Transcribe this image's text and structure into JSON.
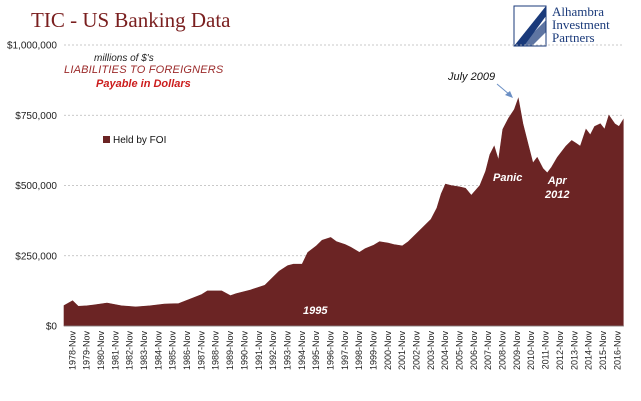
{
  "title": "TIC - US Banking Data",
  "logo": {
    "lines": [
      "Alhambra",
      "Investment",
      "Partners"
    ]
  },
  "colors": {
    "area": "#6b2424",
    "grid": "#b8b8b8",
    "title": "#7a1f1f",
    "logo_blue": "#1a3a7a"
  },
  "annotations": {
    "units": "millions of $'s",
    "liabilities": "LIABILITIES TO FOREIGNERS",
    "payable": "Payable in Dollars",
    "july2009": "July 2009",
    "panic": "Panic",
    "apr": "Apr",
    "apr_year": "2012",
    "y1995": "1995"
  },
  "chart_data": {
    "type": "area",
    "title": "TIC - US Banking Data",
    "legend": {
      "label": "Held by FOI",
      "placement": "left"
    },
    "ylim": [
      0,
      1000000
    ],
    "yticks": [
      0,
      250000,
      500000,
      750000,
      1000000
    ],
    "ytick_labels": [
      "$0",
      "$250,000",
      "$500,000",
      "$750,000",
      "$1,000,000"
    ],
    "grid": true,
    "xtick_labels": [
      "1978-Nov",
      "1979-Nov",
      "1980-Nov",
      "1981-Nov",
      "1982-Nov",
      "1983-Nov",
      "1984-Nov",
      "1985-Nov",
      "1986-Nov",
      "1987-Nov",
      "1988-Nov",
      "1989-Nov",
      "1990-Nov",
      "1991-Nov",
      "1992-Nov",
      "1993-Nov",
      "1994-Nov",
      "1995-Nov",
      "1996-Nov",
      "1997-Nov",
      "1998-Nov",
      "1999-Nov",
      "2000-Nov",
      "2001-Nov",
      "2002-Nov",
      "2003-Nov",
      "2004-Nov",
      "2005-Nov",
      "2006-Nov",
      "2007-Nov",
      "2008-Nov",
      "2009-Nov",
      "2010-Nov",
      "2011-Nov",
      "2012-Nov",
      "2013-Nov",
      "2014-Nov",
      "2015-Nov",
      "2016-Nov"
    ],
    "series": [
      {
        "name": "Held by FOI",
        "x": [
          1977.9,
          1978.5,
          1978.9,
          1979.5,
          1980.0,
          1980.9,
          1981.9,
          1982.9,
          1983.9,
          1984.9,
          1985.9,
          1986.9,
          1987.5,
          1987.9,
          1988.9,
          1989.5,
          1989.9,
          1990.9,
          1991.9,
          1992.5,
          1992.9,
          1993.5,
          1993.9,
          1994.5,
          1994.9,
          1995.5,
          1995.9,
          1996.5,
          1996.9,
          1997.5,
          1997.9,
          1998.5,
          1998.9,
          1999.5,
          1999.9,
          2000.5,
          2000.9,
          2001.5,
          2001.9,
          2002.5,
          2002.9,
          2003.5,
          2003.9,
          2004.2,
          2004.5,
          2004.9,
          2005.5,
          2005.9,
          2006.3,
          2006.9,
          2007.3,
          2007.6,
          2007.9,
          2008.2,
          2008.5,
          2008.9,
          2009.3,
          2009.58,
          2009.9,
          2010.3,
          2010.6,
          2010.9,
          2011.3,
          2011.6,
          2011.9,
          2012.3,
          2012.6,
          2012.9,
          2013.3,
          2013.6,
          2013.9,
          2014.3,
          2014.6,
          2014.9,
          2015.3,
          2015.6,
          2015.9,
          2016.3,
          2016.6,
          2016.9
        ],
        "values": [
          73000,
          90000,
          70000,
          72000,
          75000,
          82000,
          72000,
          68000,
          72000,
          78000,
          80000,
          100000,
          112000,
          125000,
          125000,
          108000,
          115000,
          128000,
          145000,
          175000,
          195000,
          215000,
          220000,
          220000,
          262000,
          285000,
          305000,
          315000,
          300000,
          290000,
          280000,
          262000,
          275000,
          288000,
          300000,
          295000,
          290000,
          285000,
          300000,
          330000,
          350000,
          380000,
          420000,
          470000,
          505000,
          500000,
          495000,
          490000,
          465000,
          500000,
          550000,
          610000,
          640000,
          590000,
          700000,
          740000,
          770000,
          810000,
          720000,
          640000,
          580000,
          600000,
          560000,
          545000,
          565000,
          600000,
          620000,
          640000,
          660000,
          650000,
          640000,
          700000,
          680000,
          710000,
          720000,
          700000,
          750000,
          720000,
          710000,
          735000
        ]
      }
    ]
  }
}
